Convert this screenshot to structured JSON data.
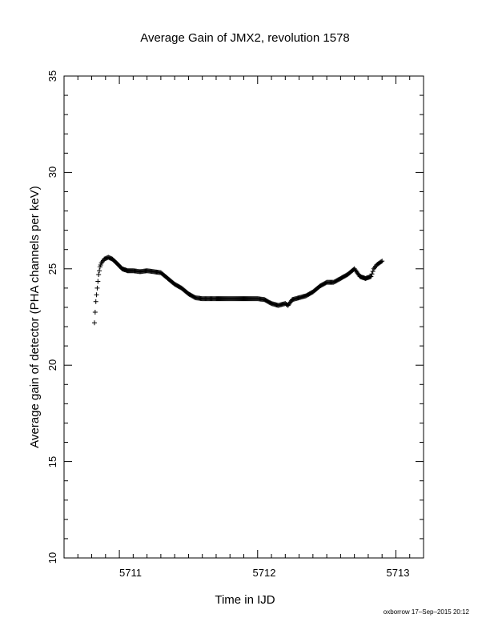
{
  "chart_data": {
    "type": "scatter",
    "title": "Average Gain of JMX2, revolution 1578",
    "xlabel": "Time in IJD",
    "ylabel": "Average gain of detector (PHA channels per keV)",
    "xlim": [
      5710.6,
      5713.2
    ],
    "ylim": [
      10,
      35
    ],
    "xticks": [
      "5711",
      "5712",
      "5713"
    ],
    "yticks": [
      "10",
      "15",
      "20",
      "25",
      "30",
      "35"
    ],
    "marker": "plus",
    "grid": false,
    "series": [
      {
        "x": [
          5710.82,
          5710.83,
          5710.84,
          5710.85,
          5710.86,
          5710.87,
          5710.89,
          5710.92,
          5710.95,
          5710.98,
          5711.02,
          5711.06,
          5711.1,
          5711.15,
          5711.2,
          5711.25,
          5711.3,
          5711.35,
          5711.4,
          5711.45,
          5711.5,
          5711.55,
          5711.6,
          5711.65,
          5711.7,
          5711.8,
          5711.9,
          5712.0,
          5712.05,
          5712.1,
          5712.15,
          5712.2,
          5712.22,
          5712.25,
          5712.3,
          5712.35,
          5712.4,
          5712.45,
          5712.5,
          5712.55,
          5712.6,
          5712.65,
          5712.7,
          5712.74,
          5712.78,
          5712.82,
          5712.84,
          5712.86,
          5712.88,
          5712.9
        ],
        "y": [
          22.2,
          23.3,
          24.0,
          24.7,
          25.1,
          25.3,
          25.5,
          25.6,
          25.5,
          25.3,
          25.0,
          24.9,
          24.9,
          24.85,
          24.9,
          24.85,
          24.8,
          24.5,
          24.2,
          24.0,
          23.7,
          23.5,
          23.45,
          23.45,
          23.45,
          23.45,
          23.45,
          23.45,
          23.4,
          23.2,
          23.1,
          23.2,
          23.1,
          23.4,
          23.5,
          23.6,
          23.8,
          24.1,
          24.3,
          24.3,
          24.5,
          24.7,
          25.0,
          24.6,
          24.5,
          24.6,
          25.0,
          25.2,
          25.3,
          25.4
        ]
      }
    ]
  },
  "footer": "oxborrow 17–Sep–2015 20:12"
}
